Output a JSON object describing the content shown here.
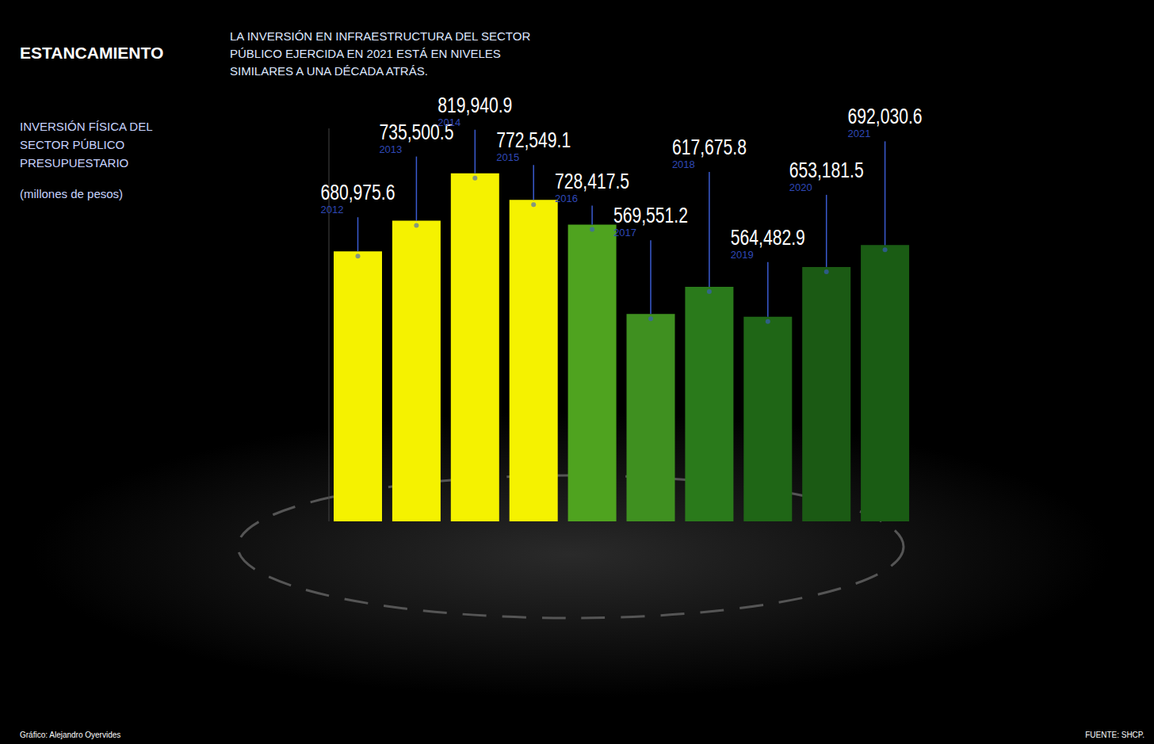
{
  "chart_data": {
    "type": "bar",
    "title": "ESTANCAMIENTO",
    "subtitle": "LA INVERSIÓN EN INFRAESTRUCTURA DEL SECTOR PÚBLICO EJERCIDA EN 2021 ESTÁ EN NIVELES SIMILARES A UNA DÉCADA ATRÁS.",
    "y_label": "INVERSIÓN FÍSICA DEL SECTOR PÚBLICO PRESUPUESTARIO",
    "y_unit": "(millones de pesos)",
    "credit": "Gráfico: Alejandro Oyervides",
    "source": "FUENTE: SHCP.",
    "categories": [
      "2012",
      "2013",
      "2014",
      "2015",
      "2016",
      "2017",
      "2018",
      "2019",
      "2020",
      "2021"
    ],
    "values": [
      680975.6,
      735500.5,
      819940.9,
      772549.1,
      728417.5,
      569551.2,
      617675.8,
      564482.9,
      653181.5,
      692030.6
    ],
    "value_labels": [
      "680,975.6",
      "735,500.5",
      "819,940.9",
      "772,549.1",
      "728,417.5",
      "569,551.2",
      "617,675.8",
      "564,482.9",
      "653,181.5",
      "692,030.6"
    ],
    "colors": [
      "#f5f200",
      "#f5f200",
      "#f5f200",
      "#f5f200",
      "#4fa31f",
      "#3f9020",
      "#2a7a1b",
      "#1f6616",
      "#1b5a14",
      "#1a5c14"
    ],
    "ylim": [
      200000,
      900000
    ],
    "yticks": [
      200000,
      900000
    ],
    "data_labels": true,
    "tick_labels": false,
    "grid": false
  }
}
